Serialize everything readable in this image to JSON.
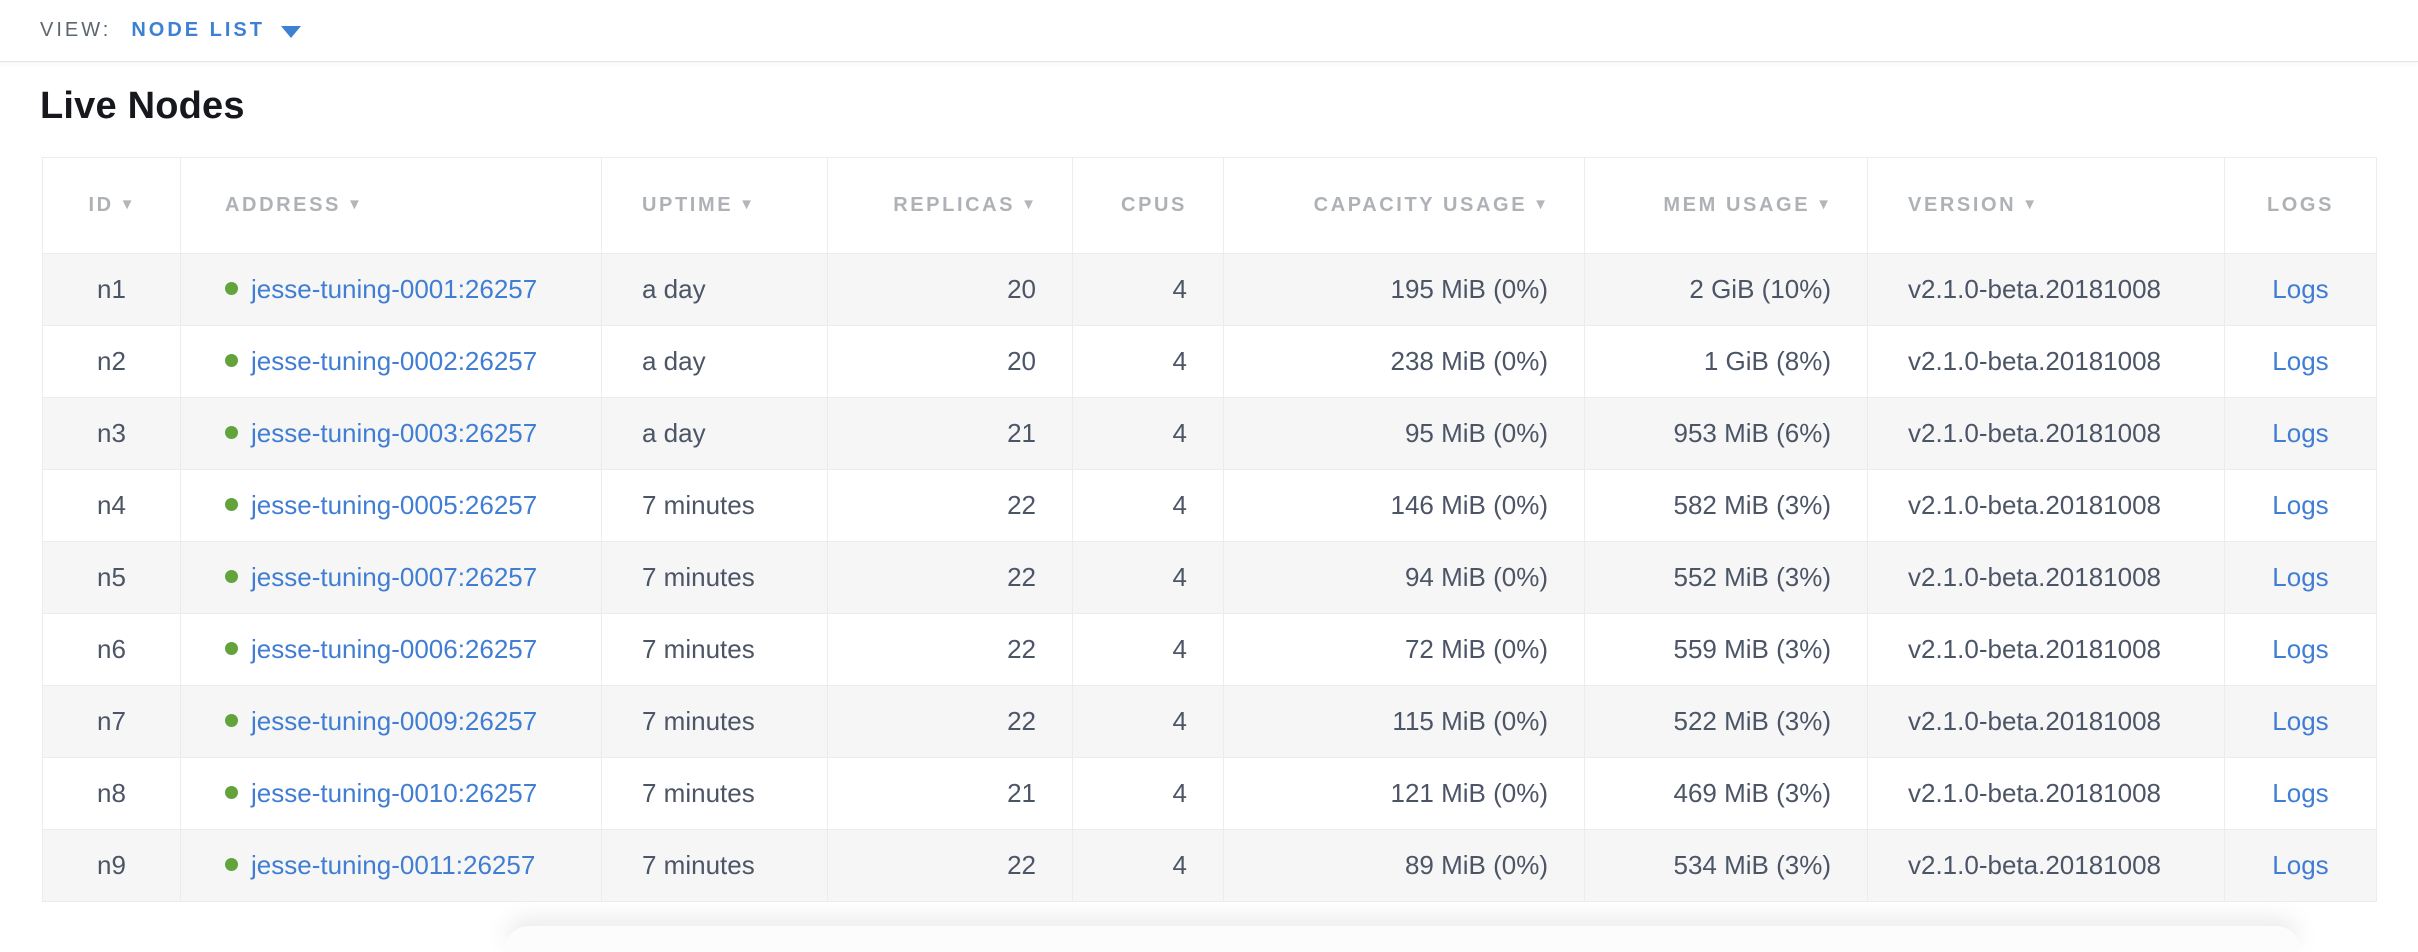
{
  "view_bar": {
    "label": "VIEW:",
    "selected": "NODE LIST",
    "dropdown_icon": "triangle-down-icon"
  },
  "page": {
    "title": "Live Nodes"
  },
  "colors": {
    "accent_blue": "#3e80d2",
    "link_blue": "#417ed3",
    "live_status_green": "#62a33c",
    "header_gray": "#aeb2b7",
    "cell_text": "#4c5566",
    "row_stripe": "#f6f6f7"
  },
  "table": {
    "columns": [
      {
        "key": "id",
        "label": "ID",
        "sort_indicator": true
      },
      {
        "key": "address",
        "label": "ADDRESS",
        "sort_indicator": true
      },
      {
        "key": "uptime",
        "label": "UPTIME",
        "sort_indicator": true
      },
      {
        "key": "replicas",
        "label": "REPLICAS",
        "sort_indicator": true
      },
      {
        "key": "cpus",
        "label": "CPUS",
        "sort_indicator": false
      },
      {
        "key": "capacity",
        "label": "CAPACITY USAGE",
        "sort_indicator": true
      },
      {
        "key": "mem",
        "label": "MEM USAGE",
        "sort_indicator": true
      },
      {
        "key": "version",
        "label": "VERSION",
        "sort_indicator": true
      },
      {
        "key": "logs",
        "label": "LOGS",
        "sort_indicator": false
      }
    ],
    "rows": [
      {
        "id": "n1",
        "status": "live",
        "address": "jesse-tuning-0001:26257",
        "uptime": "a day",
        "replicas": "20",
        "cpus": "4",
        "capacity": "195 MiB (0%)",
        "mem": "2 GiB (10%)",
        "version": "v2.1.0-beta.20181008",
        "logs": "Logs"
      },
      {
        "id": "n2",
        "status": "live",
        "address": "jesse-tuning-0002:26257",
        "uptime": "a day",
        "replicas": "20",
        "cpus": "4",
        "capacity": "238 MiB (0%)",
        "mem": "1 GiB (8%)",
        "version": "v2.1.0-beta.20181008",
        "logs": "Logs"
      },
      {
        "id": "n3",
        "status": "live",
        "address": "jesse-tuning-0003:26257",
        "uptime": "a day",
        "replicas": "21",
        "cpus": "4",
        "capacity": "95 MiB (0%)",
        "mem": "953 MiB (6%)",
        "version": "v2.1.0-beta.20181008",
        "logs": "Logs"
      },
      {
        "id": "n4",
        "status": "live",
        "address": "jesse-tuning-0005:26257",
        "uptime": "7 minutes",
        "replicas": "22",
        "cpus": "4",
        "capacity": "146 MiB (0%)",
        "mem": "582 MiB (3%)",
        "version": "v2.1.0-beta.20181008",
        "logs": "Logs"
      },
      {
        "id": "n5",
        "status": "live",
        "address": "jesse-tuning-0007:26257",
        "uptime": "7 minutes",
        "replicas": "22",
        "cpus": "4",
        "capacity": "94 MiB (0%)",
        "mem": "552 MiB (3%)",
        "version": "v2.1.0-beta.20181008",
        "logs": "Logs"
      },
      {
        "id": "n6",
        "status": "live",
        "address": "jesse-tuning-0006:26257",
        "uptime": "7 minutes",
        "replicas": "22",
        "cpus": "4",
        "capacity": "72 MiB (0%)",
        "mem": "559 MiB (3%)",
        "version": "v2.1.0-beta.20181008",
        "logs": "Logs"
      },
      {
        "id": "n7",
        "status": "live",
        "address": "jesse-tuning-0009:26257",
        "uptime": "7 minutes",
        "replicas": "22",
        "cpus": "4",
        "capacity": "115 MiB (0%)",
        "mem": "522 MiB (3%)",
        "version": "v2.1.0-beta.20181008",
        "logs": "Logs"
      },
      {
        "id": "n8",
        "status": "live",
        "address": "jesse-tuning-0010:26257",
        "uptime": "7 minutes",
        "replicas": "21",
        "cpus": "4",
        "capacity": "121 MiB (0%)",
        "mem": "469 MiB (3%)",
        "version": "v2.1.0-beta.20181008",
        "logs": "Logs"
      },
      {
        "id": "n9",
        "status": "live",
        "address": "jesse-tuning-0011:26257",
        "uptime": "7 minutes",
        "replicas": "22",
        "cpus": "4",
        "capacity": "89 MiB (0%)",
        "mem": "534 MiB (3%)",
        "version": "v2.1.0-beta.20181008",
        "logs": "Logs"
      }
    ]
  }
}
